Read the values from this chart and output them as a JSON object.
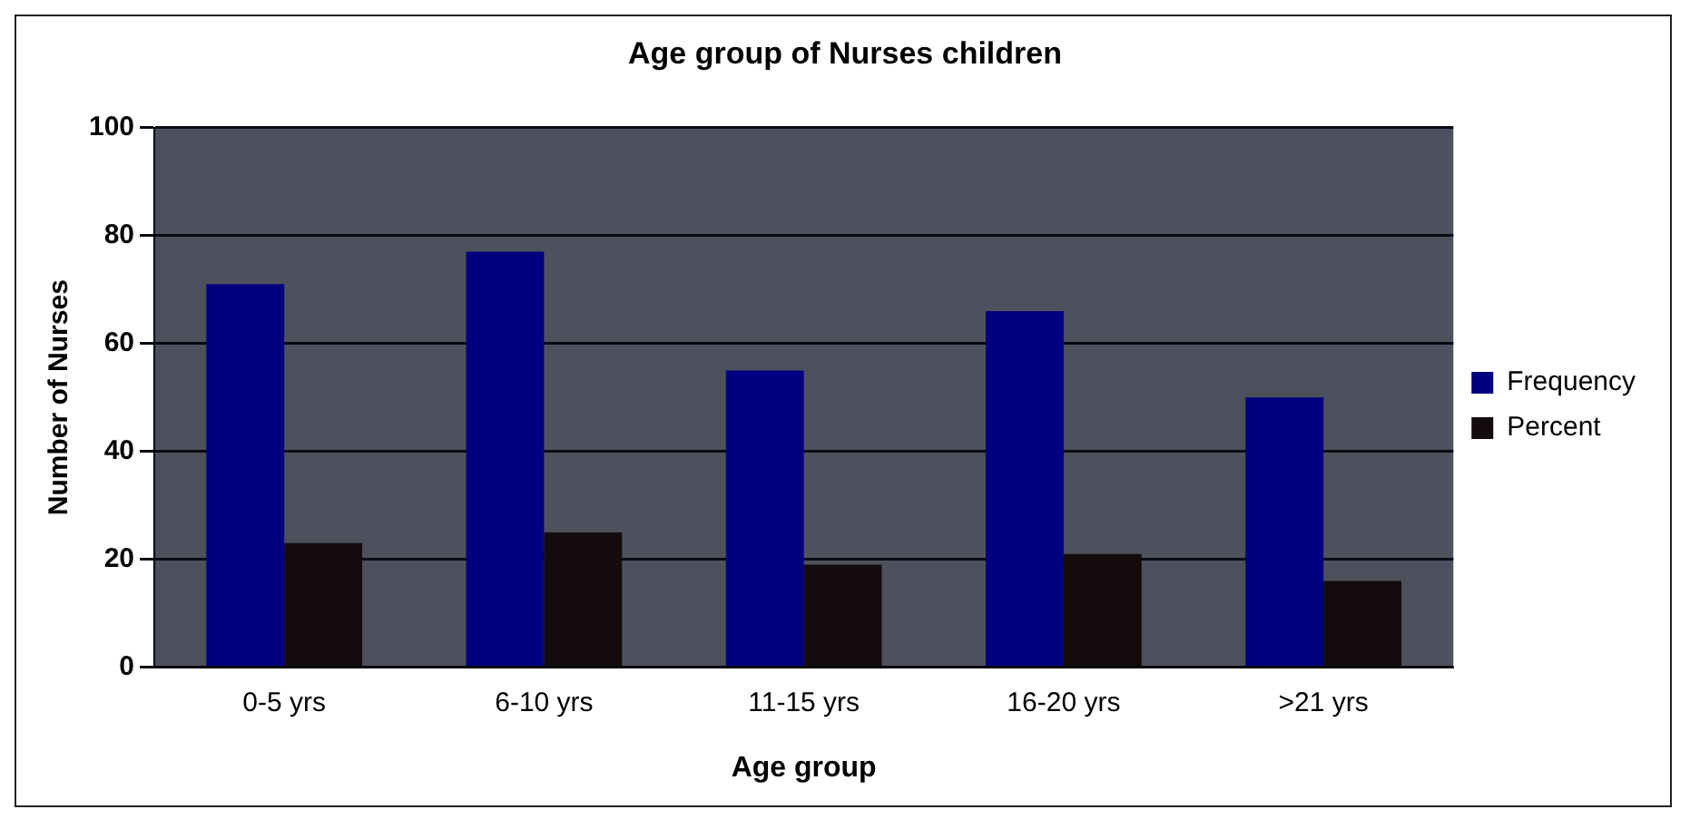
{
  "chart_data": {
    "type": "bar",
    "title": "Age group of Nurses children",
    "xlabel": "Age group",
    "ylabel": "Number of Nurses",
    "categories": [
      "0-5 yrs",
      "6-10 yrs",
      "11-15 yrs",
      "16-20 yrs",
      ">21 yrs"
    ],
    "series": [
      {
        "name": "Frequency",
        "color": "#000080",
        "values": [
          71,
          77,
          55,
          66,
          50
        ]
      },
      {
        "name": "Percent",
        "color": "#140c0c",
        "values": [
          23,
          25,
          19,
          21,
          16
        ]
      }
    ],
    "ylim": [
      0,
      100
    ],
    "yticks": [
      0,
      20,
      40,
      60,
      80,
      100
    ],
    "grid": "y",
    "legend": "right"
  }
}
